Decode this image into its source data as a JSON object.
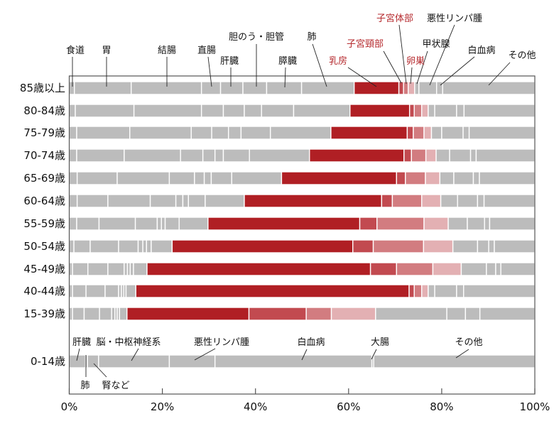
{
  "chart_data": {
    "type": "bar",
    "orientation": "horizontal",
    "stacked": true,
    "xlim": [
      0,
      100
    ],
    "x_ticks": [
      "0%",
      "20%",
      "40%",
      "60%",
      "80%",
      "100%"
    ],
    "grid": false,
    "colors": {
      "gray": "#bcbcbc",
      "breast": "#b01f24",
      "cervix": "#c24a50",
      "uterus": "#d27c80",
      "ovary": "#e3b0b3",
      "label_red": "#b52a2e"
    },
    "groups": [
      {
        "series": [
          "食道",
          "胃",
          "結腸",
          "直腸",
          "肝臓",
          "胆のう・胆管",
          "膵臓",
          "肺",
          "乳房",
          "子宮頸部",
          "子宮体部",
          "卵巣",
          "甲状腺",
          "悪性リンパ腫",
          "白血病",
          "その他"
        ],
        "series_colors": [
          "gray",
          "gray",
          "gray",
          "gray",
          "gray",
          "gray",
          "gray",
          "gray",
          "breast",
          "cervix",
          "uterus",
          "ovary",
          "gray",
          "gray",
          "gray",
          "gray"
        ],
        "red_labels": [
          "乳房",
          "子宮頸部",
          "子宮体部",
          "卵巣"
        ],
        "rows": [
          {
            "label": "85歳以上",
            "values": [
              1.1,
              12.2,
              15.1,
              4.1,
              4.8,
              5.1,
              7.5,
              11.3,
              9.6,
              1.0,
              1.0,
              1.4,
              0.9,
              3.8,
              1.3,
              19.8
            ]
          },
          {
            "label": "80-84歳",
            "values": [
              1.3,
              12.6,
              14.5,
              4.7,
              4.5,
              3.7,
              6.9,
              12.1,
              12.8,
              1.0,
              1.6,
              1.4,
              1.4,
              4.7,
              1.6,
              15.2
            ]
          },
          {
            "label": "75-79歳",
            "values": [
              1.6,
              11.4,
              13.2,
              4.4,
              3.6,
              2.7,
              6.3,
              13.0,
              16.4,
              1.3,
              2.3,
              1.6,
              2.2,
              4.6,
              1.3,
              14.1
            ]
          },
          {
            "label": "70-74歳",
            "values": [
              1.6,
              10.2,
              12.1,
              4.8,
              2.6,
              1.8,
              5.6,
              12.9,
              20.3,
              1.6,
              3.1,
              2.2,
              2.9,
              4.5,
              1.2,
              12.6
            ]
          },
          {
            "label": "65-69歳",
            "values": [
              1.7,
              8.6,
              11.2,
              5.4,
              2.1,
              1.5,
              4.4,
              10.7,
              24.7,
              1.9,
              4.3,
              3.1,
              3.0,
              4.2,
              1.3,
              11.9
            ]
          },
          {
            "label": "60-64歳",
            "values": [
              1.7,
              6.6,
              9.1,
              5.5,
              1.5,
              1.2,
              3.6,
              8.4,
              29.5,
              2.3,
              6.3,
              4.1,
              3.6,
              4.3,
              1.4,
              10.9
            ]
          },
          {
            "label": "55-59歳",
            "values": [
              1.6,
              4.8,
              7.8,
              4.7,
              0.9,
              0.8,
              3.0,
              6.2,
              32.6,
              3.7,
              10.1,
              5.2,
              4.1,
              3.7,
              1.1,
              9.7
            ]
          },
          {
            "label": "50-54歳",
            "values": [
              1.0,
              3.5,
              6.1,
              4.2,
              1.0,
              0.8,
              1.0,
              4.5,
              38.8,
              4.4,
              10.8,
              6.3,
              5.3,
              2.4,
              1.2,
              8.7
            ]
          },
          {
            "label": "45-49歳",
            "values": [
              0.7,
              3.3,
              4.3,
              3.5,
              0.7,
              0.6,
              0.7,
              2.9,
              48.0,
              5.6,
              7.8,
              6.1,
              5.4,
              2.0,
              1.1,
              7.3
            ]
          },
          {
            "label": "40-44歳",
            "values": [
              0.7,
              2.9,
              4.1,
              2.9,
              0.6,
              0.5,
              0.5,
              2.1,
              58.7,
              1.1,
              1.6,
              1.4,
              1.4,
              4.7,
              1.5,
              15.3
            ]
          },
          {
            "label": "15-39歳",
            "values": [
              0.7,
              2.5,
              3.3,
              2.6,
              0.7,
              0.5,
              0.5,
              1.6,
              26.2,
              12.3,
              5.4,
              9.5,
              15.3,
              4.0,
              3.1,
              11.8
            ]
          }
        ]
      },
      {
        "series": [
          "肝臓",
          "肺",
          "腎など",
          "脳・中枢神経系",
          "悪性リンパ腫",
          "白血病",
          "大腸",
          "その他"
        ],
        "series_colors": [
          "gray",
          "gray",
          "gray",
          "gray",
          "gray",
          "gray",
          "gray",
          "gray"
        ],
        "rows": [
          {
            "label": "0-14歳",
            "values": [
              3.5,
              0.4,
              2.4,
              15.2,
              9.8,
              33.7,
              0.4,
              34.6
            ]
          }
        ]
      }
    ]
  }
}
